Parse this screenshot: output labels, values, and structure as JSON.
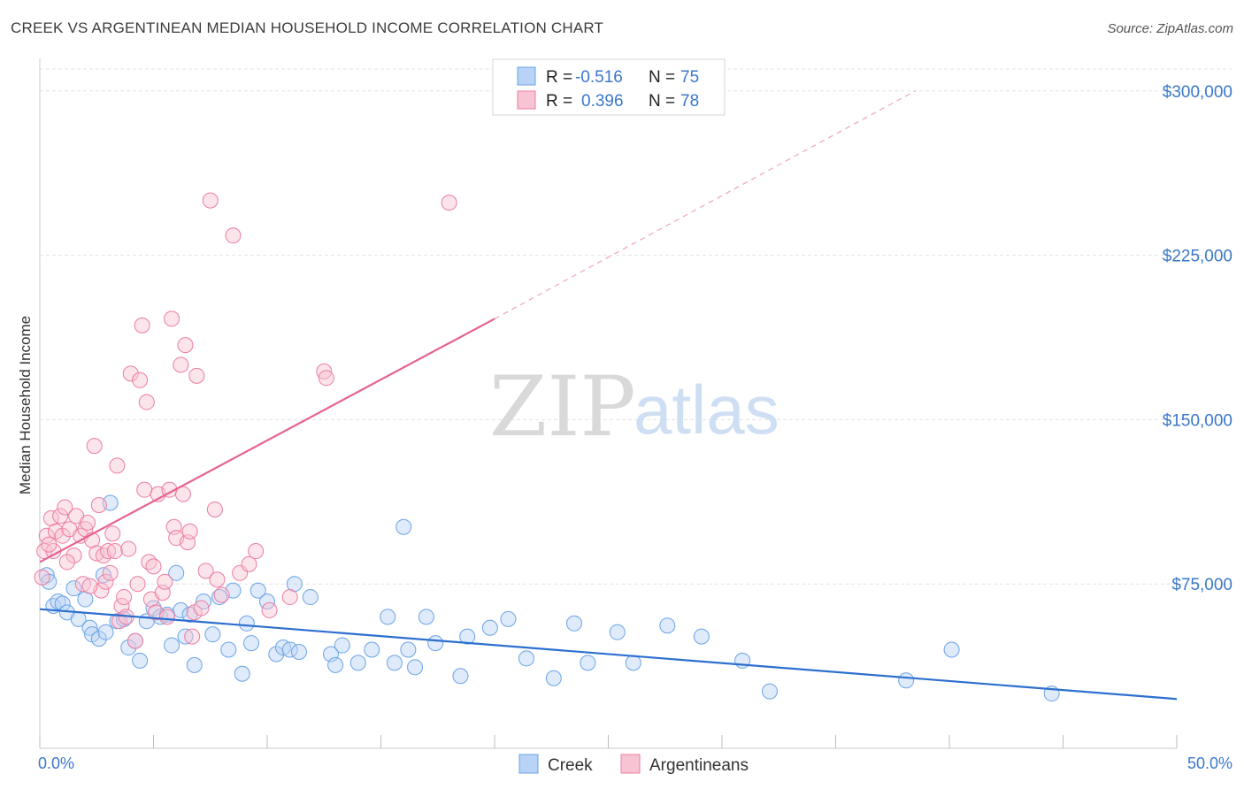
{
  "title": "CREEK VS ARGENTINEAN MEDIAN HOUSEHOLD INCOME CORRELATION CHART",
  "source": "Source: ZipAtlas.com",
  "watermark": {
    "zip": "ZIP",
    "atlas": "atlas"
  },
  "legend": {
    "rows": [
      {
        "r_label": "R =",
        "r_value": "-0.516",
        "n_label": "N =",
        "n_value": "75",
        "color": "#6aa3e8",
        "fill": "#b8d3f5"
      },
      {
        "r_label": "R =",
        "r_value": "0.396",
        "n_label": "N =",
        "n_value": "78",
        "color": "#ec7ca0",
        "fill": "#f8c3d3"
      }
    ]
  },
  "bottom_legend": [
    "Creek",
    "Argentineans"
  ],
  "chart_data": {
    "type": "scatter",
    "title": "CREEK VS ARGENTINEAN MEDIAN HOUSEHOLD INCOME CORRELATION CHART",
    "xlabel": "",
    "ylabel": "Median Household Income",
    "xlim": [
      0,
      50
    ],
    "ylim": [
      0,
      310000
    ],
    "x_tick_labels": [
      "0.0%",
      "50.0%"
    ],
    "y_ticks": [
      75000,
      150000,
      225000,
      300000
    ],
    "y_tick_labels": [
      "$75,000",
      "$150,000",
      "$225,000",
      "$300,000"
    ],
    "grid": true,
    "series": [
      {
        "name": "Creek",
        "color": "#3a78c9",
        "points": [
          [
            0.3,
            79000
          ],
          [
            0.4,
            76000
          ],
          [
            0.6,
            65000
          ],
          [
            0.8,
            67000
          ],
          [
            1.0,
            66000
          ],
          [
            1.2,
            62000
          ],
          [
            1.5,
            73000
          ],
          [
            1.7,
            59000
          ],
          [
            2.0,
            68000
          ],
          [
            2.2,
            55000
          ],
          [
            2.3,
            52000
          ],
          [
            2.6,
            50000
          ],
          [
            2.9,
            53000
          ],
          [
            3.1,
            112000
          ],
          [
            2.8,
            79000
          ],
          [
            3.4,
            58000
          ],
          [
            3.7,
            59000
          ],
          [
            3.9,
            46000
          ],
          [
            4.2,
            49000
          ],
          [
            4.4,
            40000
          ],
          [
            4.7,
            58000
          ],
          [
            5.0,
            64000
          ],
          [
            5.3,
            60000
          ],
          [
            5.6,
            61000
          ],
          [
            5.8,
            47000
          ],
          [
            6.0,
            80000
          ],
          [
            6.2,
            63000
          ],
          [
            6.4,
            51000
          ],
          [
            6.6,
            61000
          ],
          [
            6.8,
            38000
          ],
          [
            7.2,
            67000
          ],
          [
            7.6,
            52000
          ],
          [
            7.9,
            69000
          ],
          [
            8.3,
            45000
          ],
          [
            8.5,
            72000
          ],
          [
            8.9,
            34000
          ],
          [
            9.1,
            57000
          ],
          [
            9.3,
            48000
          ],
          [
            9.6,
            72000
          ],
          [
            10.0,
            67000
          ],
          [
            10.4,
            43000
          ],
          [
            10.7,
            46000
          ],
          [
            11.0,
            45000
          ],
          [
            11.2,
            75000
          ],
          [
            11.4,
            44000
          ],
          [
            11.9,
            69000
          ],
          [
            12.8,
            43000
          ],
          [
            13.0,
            38000
          ],
          [
            13.3,
            47000
          ],
          [
            14.0,
            39000
          ],
          [
            14.6,
            45000
          ],
          [
            15.3,
            60000
          ],
          [
            15.6,
            39000
          ],
          [
            16.0,
            101000
          ],
          [
            16.2,
            45000
          ],
          [
            16.5,
            37000
          ],
          [
            17.0,
            60000
          ],
          [
            17.4,
            48000
          ],
          [
            18.5,
            33000
          ],
          [
            18.8,
            51000
          ],
          [
            19.8,
            55000
          ],
          [
            20.6,
            59000
          ],
          [
            21.4,
            41000
          ],
          [
            22.6,
            32000
          ],
          [
            23.5,
            57000
          ],
          [
            24.1,
            39000
          ],
          [
            25.4,
            53000
          ],
          [
            26.1,
            39000
          ],
          [
            27.6,
            56000
          ],
          [
            29.1,
            51000
          ],
          [
            30.9,
            40000
          ],
          [
            32.1,
            26000
          ],
          [
            38.1,
            31000
          ],
          [
            40.1,
            45000
          ],
          [
            44.5,
            25000
          ]
        ]
      },
      {
        "name": "Argentineans",
        "color": "#ec7ca0",
        "points": [
          [
            0.1,
            78000
          ],
          [
            0.2,
            90000
          ],
          [
            0.3,
            97000
          ],
          [
            0.5,
            105000
          ],
          [
            0.6,
            90000
          ],
          [
            0.7,
            99000
          ],
          [
            0.9,
            106000
          ],
          [
            1.0,
            97000
          ],
          [
            1.1,
            110000
          ],
          [
            1.3,
            100000
          ],
          [
            1.5,
            88000
          ],
          [
            1.6,
            106000
          ],
          [
            1.8,
            97000
          ],
          [
            1.9,
            75000
          ],
          [
            2.0,
            100000
          ],
          [
            2.1,
            103000
          ],
          [
            2.3,
            95000
          ],
          [
            2.4,
            138000
          ],
          [
            2.5,
            89000
          ],
          [
            2.6,
            111000
          ],
          [
            2.7,
            72000
          ],
          [
            2.8,
            88000
          ],
          [
            2.9,
            76000
          ],
          [
            3.0,
            90000
          ],
          [
            3.1,
            80000
          ],
          [
            3.3,
            90000
          ],
          [
            3.4,
            129000
          ],
          [
            3.5,
            58000
          ],
          [
            3.6,
            65000
          ],
          [
            3.7,
            69000
          ],
          [
            3.8,
            60000
          ],
          [
            3.9,
            91000
          ],
          [
            4.0,
            171000
          ],
          [
            4.2,
            49000
          ],
          [
            4.4,
            168000
          ],
          [
            4.5,
            193000
          ],
          [
            4.6,
            118000
          ],
          [
            4.7,
            158000
          ],
          [
            4.8,
            85000
          ],
          [
            4.9,
            68000
          ],
          [
            5.1,
            62000
          ],
          [
            5.2,
            116000
          ],
          [
            5.4,
            71000
          ],
          [
            5.5,
            76000
          ],
          [
            5.6,
            60000
          ],
          [
            5.7,
            118000
          ],
          [
            5.8,
            196000
          ],
          [
            5.9,
            101000
          ],
          [
            6.0,
            96000
          ],
          [
            6.2,
            175000
          ],
          [
            6.3,
            116000
          ],
          [
            6.4,
            184000
          ],
          [
            6.5,
            94000
          ],
          [
            6.6,
            99000
          ],
          [
            6.7,
            51000
          ],
          [
            6.8,
            62000
          ],
          [
            6.9,
            170000
          ],
          [
            7.1,
            64000
          ],
          [
            7.3,
            81000
          ],
          [
            7.5,
            250000
          ],
          [
            7.7,
            109000
          ],
          [
            7.8,
            77000
          ],
          [
            8.0,
            70000
          ],
          [
            8.5,
            234000
          ],
          [
            8.8,
            80000
          ],
          [
            9.2,
            84000
          ],
          [
            9.5,
            90000
          ],
          [
            10.1,
            63000
          ],
          [
            11.0,
            69000
          ],
          [
            12.5,
            172000
          ],
          [
            12.6,
            169000
          ],
          [
            18.0,
            249000
          ],
          [
            0.4,
            93000
          ],
          [
            1.2,
            85000
          ],
          [
            2.2,
            74000
          ],
          [
            3.2,
            98000
          ],
          [
            4.3,
            75000
          ],
          [
            5.0,
            83000
          ]
        ]
      }
    ],
    "trend_lines": [
      {
        "series": "Creek",
        "x": [
          0,
          50
        ],
        "y": [
          63500,
          22500
        ]
      },
      {
        "series": "Argentineans",
        "x": [
          0,
          20
        ],
        "y": [
          85000,
          196000
        ],
        "dashed_extension_to": [
          38.5,
          300000
        ]
      }
    ]
  }
}
